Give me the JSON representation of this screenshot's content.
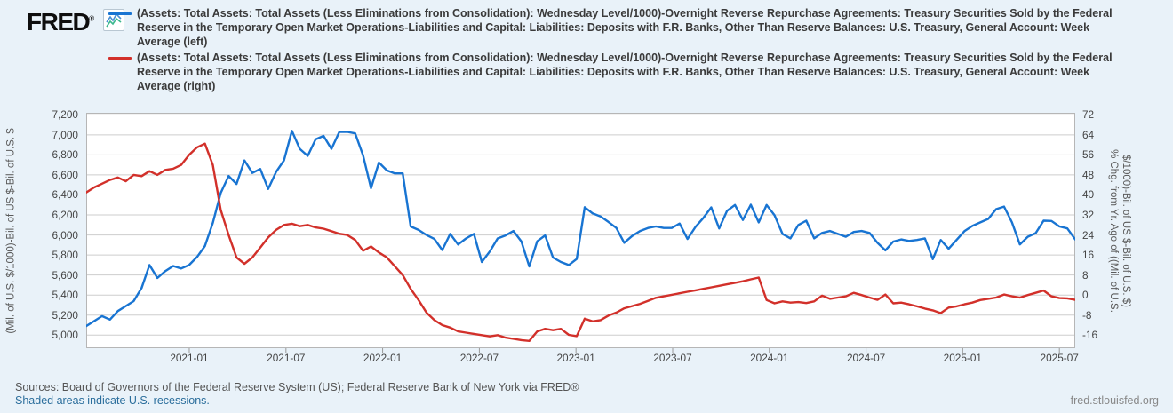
{
  "header": {
    "logo_text": "FRED",
    "logo_registered": "®",
    "legend": [
      {
        "color": "#1874d2",
        "lines": [
          "(Assets: Total Assets: Total Assets (Less Eliminations from Consolidation): Wednesday Level/1000)-Overnight Reverse Repurchase Agreements: Treasury Securities Sold by the Federal",
          "Reserve in the Temporary Open Market Operations-Liabilities and Capital: Liabilities: Deposits with F.R. Banks, Other Than Reserve Balances: U.S. Treasury, General Account: Week",
          "Average (left)"
        ]
      },
      {
        "color": "#d2302a",
        "lines": [
          "(Assets: Total Assets: Total Assets (Less Eliminations from Consolidation): Wednesday Level/1000)-Overnight Reverse Repurchase Agreements: Treasury Securities Sold by the Federal",
          "Reserve in the Temporary Open Market Operations-Liabilities and Capital: Liabilities: Deposits with F.R. Banks, Other Than Reserve Balances: U.S. Treasury, General Account: Week",
          "Average (right)"
        ]
      }
    ]
  },
  "chart_data": {
    "type": "line",
    "grid": "horizontal",
    "legend_position": "top",
    "x_ticks": {
      "labels": [
        "2021-01",
        "2021-07",
        "2022-01",
        "2022-07",
        "2023-01",
        "2023-07",
        "2024-01",
        "2024-07",
        "2025-01",
        "2025-07"
      ],
      "fracs": [
        0.1042,
        0.202,
        0.2997,
        0.3975,
        0.4952,
        0.593,
        0.6907,
        0.7885,
        0.8862,
        0.984
      ]
    },
    "left_axis": {
      "title": "(Mil. of U.S. $/1000)-Bil. of US $-Bil. of U.S. $",
      "min": 5000,
      "max": 7200,
      "step": 200,
      "ticks": [
        "7,200",
        "7,000",
        "6,800",
        "6,600",
        "6,400",
        "6,200",
        "6,000",
        "5,800",
        "5,600",
        "5,400",
        "5,200",
        "5,000"
      ]
    },
    "right_axis": {
      "title_lines": [
        "% Chg. from Yr. Ago of ((Mil. of U.S.",
        "$/1000)-Bil. of US $-Bil. of U.S. $)"
      ],
      "min": -16,
      "max": 72,
      "step": 8,
      "ticks": [
        "72",
        "64",
        "56",
        "48",
        "40",
        "32",
        "24",
        "16",
        "8",
        "0",
        "-8",
        "-16"
      ]
    },
    "series": [
      {
        "name": "series-left",
        "axis": "left",
        "color": "#1874d2",
        "values": [
          5090,
          5140,
          5190,
          5155,
          5240,
          5290,
          5340,
          5470,
          5700,
          5570,
          5640,
          5690,
          5665,
          5700,
          5780,
          5890,
          6120,
          6420,
          6590,
          6510,
          6745,
          6620,
          6660,
          6460,
          6630,
          6745,
          7040,
          6860,
          6790,
          6955,
          6990,
          6860,
          7030,
          7030,
          7015,
          6795,
          6467,
          6724,
          6645,
          6615,
          6615,
          6085,
          6050,
          6000,
          5960,
          5850,
          6010,
          5905,
          5965,
          6010,
          5730,
          5835,
          5965,
          5995,
          6040,
          5935,
          5686,
          5937,
          5995,
          5774,
          5730,
          5700,
          5760,
          6277,
          6215,
          6185,
          6130,
          6070,
          5922,
          5990,
          6040,
          6070,
          6085,
          6070,
          6070,
          6114,
          5960,
          6080,
          6170,
          6276,
          6065,
          6241,
          6300,
          6150,
          6302,
          6126,
          6300,
          6197,
          6010,
          5966,
          6100,
          6143,
          5966,
          6020,
          6040,
          6010,
          5982,
          6030,
          6040,
          6020,
          5922,
          5846,
          5934,
          5955,
          5940,
          5950,
          5966,
          5758,
          5950,
          5862,
          5950,
          6038,
          6090,
          6126,
          6160,
          6258,
          6284,
          6126,
          5906,
          5982,
          6018,
          6143,
          6140,
          6085,
          6065,
          5955
        ]
      },
      {
        "name": "series-right",
        "axis": "right",
        "color": "#d2302a",
        "values": [
          41,
          43,
          44.5,
          46,
          47,
          45.5,
          48,
          47.5,
          49.5,
          48,
          50,
          50.5,
          52,
          56,
          59,
          60.5,
          52,
          34,
          24,
          15,
          12.5,
          15,
          19,
          23,
          26,
          28,
          28.5,
          27.5,
          28,
          27,
          26.5,
          25.5,
          24.5,
          24,
          22,
          17.7,
          19.4,
          17,
          15,
          11.5,
          8,
          2.5,
          -2,
          -7,
          -10,
          -12,
          -13,
          -14.5,
          -15,
          -15.5,
          -16,
          -16.5,
          -16,
          -17,
          -17.5,
          -18,
          -18.3,
          -14.5,
          -13.5,
          -14,
          -13.5,
          -15.9,
          -16.4,
          -9.4,
          -10.5,
          -10,
          -8.2,
          -7,
          -5.3,
          -4.4,
          -3.5,
          -2.3,
          -1.1,
          -0.5,
          0.1,
          0.7,
          1.3,
          1.9,
          2.5,
          3.1,
          3.7,
          4.3,
          4.9,
          5.5,
          6.3,
          7.0,
          -2,
          -3.3,
          -2.5,
          -3,
          -2.8,
          -3.2,
          -2.5,
          -0.2,
          -1.5,
          -1,
          -0.5,
          0.9,
          0,
          -1,
          -1.9,
          0.2,
          -3.3,
          -3,
          -3.7,
          -4.5,
          -5.4,
          -6.1,
          -7.2,
          -5,
          -4.5,
          -3.7,
          -3,
          -2,
          -1.5,
          -1,
          0.2,
          -0.5,
          -1,
          0,
          0.9,
          1.8,
          -0.5,
          -1.2,
          -1.3,
          -1.9
        ]
      }
    ],
    "plot_colors": {
      "background": "#ffffff",
      "border": "#b6b6b6",
      "gridline": "#cdcdcd",
      "tick": "#9a9a9a"
    }
  },
  "footer": {
    "sources": "Sources: Board of Governors of the Federal Reserve System (US); Federal Reserve Bank of New York via FRED®",
    "recession_note": "Shaded areas indicate U.S. recessions.",
    "site": "fred.stlouisfed.org"
  },
  "colors": {
    "page_background": "#e9f2f9",
    "legend_text": "#3a3a3a",
    "axis_text": "#444444",
    "link": "#2b6e9c"
  }
}
